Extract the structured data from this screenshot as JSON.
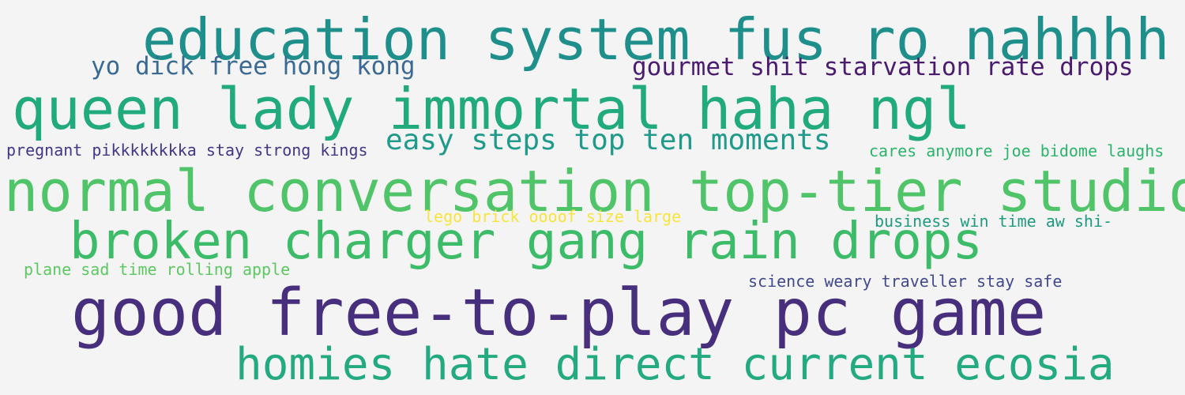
{
  "word_cloud": {
    "background": "#f4f4f4",
    "phrases": [
      {
        "text": "education system fus ro nahhhh",
        "color": "#1f8f8c"
      },
      {
        "text": "yo dick free hong kong",
        "color": "#3a6a93"
      },
      {
        "text": "gourmet shit starvation rate drops",
        "color": "#4a1b6e"
      },
      {
        "text": "queen lady immortal haha ngl",
        "color": "#20aa7e"
      },
      {
        "text": "pregnant pikkkkkkkka stay strong kings",
        "color": "#413787"
      },
      {
        "text": "easy steps top ten moments",
        "color": "#1f9a8b"
      },
      {
        "text": "cares anymore joe bidome laughs",
        "color": "#2ab46c"
      },
      {
        "text": "normal conversation top-tier studio",
        "color": "#50c468"
      },
      {
        "text": "lego brick oooof size large",
        "color": "#f7e43d"
      },
      {
        "text": "business win time aw shi-",
        "color": "#1e9b7f"
      },
      {
        "text": "broken charger gang rain drops",
        "color": "#3cbc68"
      },
      {
        "text": "plane sad time rolling apple",
        "color": "#5cc861"
      },
      {
        "text": "science weary traveller stay safe",
        "color": "#40498d"
      },
      {
        "text": "good free-to-play pc game",
        "color": "#472f7d"
      },
      {
        "text": "homies hate direct current ecosia",
        "color": "#23aa80"
      }
    ]
  }
}
